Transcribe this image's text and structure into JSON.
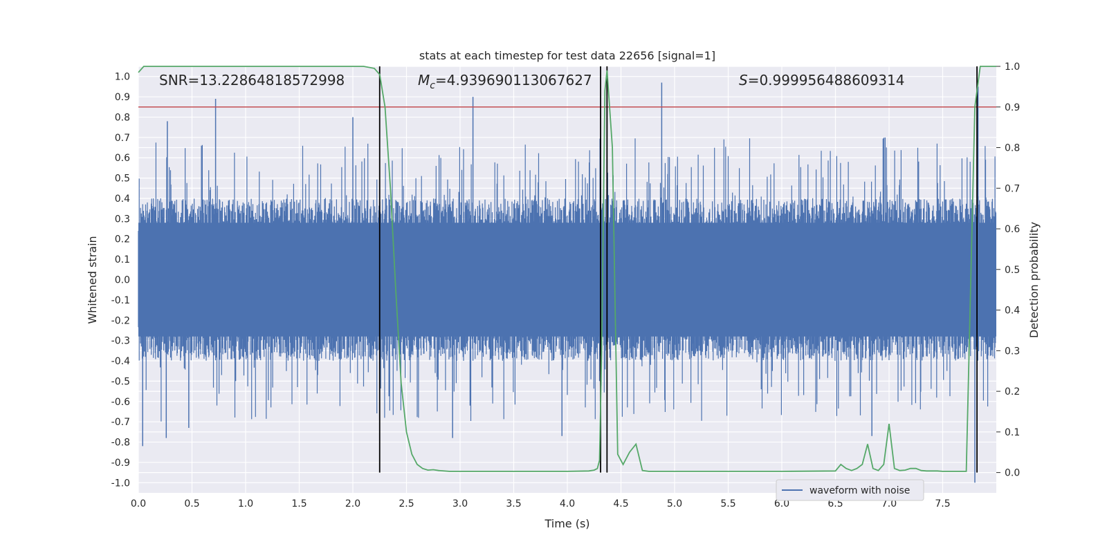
{
  "chart_data": {
    "type": "line",
    "title": "stats at each timestep for test data 22656 [signal=1]",
    "xlabel": "Time (s)",
    "ylabel_left": "Whitened strain",
    "ylabel_right": "Detection probability",
    "xlim": [
      0,
      8
    ],
    "ylim_left": [
      -1.05,
      1.05
    ],
    "ylim_right": [
      -0.05,
      1.0
    ],
    "x_ticks": [
      "0.0",
      "0.5",
      "1.0",
      "1.5",
      "2.0",
      "2.5",
      "3.0",
      "3.5",
      "4.0",
      "4.5",
      "5.0",
      "5.5",
      "6.0",
      "6.5",
      "7.0",
      "7.5"
    ],
    "x_tick_values": [
      0,
      0.5,
      1,
      1.5,
      2,
      2.5,
      3,
      3.5,
      4,
      4.5,
      5,
      5.5,
      6,
      6.5,
      7,
      7.5
    ],
    "y_ticks_left": [
      "1.0",
      "0.9",
      "0.8",
      "0.7",
      "0.6",
      "0.5",
      "0.4",
      "0.3",
      "0.2",
      "0.1",
      "0.0",
      "-0.1",
      "-0.2",
      "-0.3",
      "-0.4",
      "-0.5",
      "-0.6",
      "-0.7",
      "-0.8",
      "-0.9",
      "-1.0"
    ],
    "y_tick_values_left": [
      1,
      0.9,
      0.8,
      0.7,
      0.6,
      0.5,
      0.4,
      0.3,
      0.2,
      0.1,
      0,
      -0.1,
      -0.2,
      -0.3,
      -0.4,
      -0.5,
      -0.6,
      -0.7,
      -0.8,
      -0.9,
      -1
    ],
    "y_ticks_right": [
      "1.0",
      "0.9",
      "0.8",
      "0.7",
      "0.6",
      "0.5",
      "0.4",
      "0.3",
      "0.2",
      "0.1",
      "0.0"
    ],
    "y_tick_values_right": [
      1,
      0.9,
      0.8,
      0.7,
      0.6,
      0.5,
      0.4,
      0.3,
      0.2,
      0.1,
      0
    ],
    "annotations": {
      "snr": "SNR=13.22864818572998",
      "mc_symbol": "M",
      "mc_sub": "c",
      "mc_value": "=4.939690113067627",
      "s_symbol": "S",
      "s_value": "=0.999956488609314"
    },
    "threshold": {
      "value": 0.9,
      "axis": "right",
      "color": "#c44e52"
    },
    "vertical_lines": [
      2.25,
      4.31,
      4.37,
      7.82
    ],
    "waveform": {
      "name": "waveform with noise",
      "color": "#4c72b0",
      "samples": 2000,
      "typical_envelope": [
        -0.4,
        0.4
      ],
      "extremes": [
        {
          "x": 0.72,
          "y": 0.89
        },
        {
          "x": 2.0,
          "y": 0.8
        },
        {
          "x": 3.12,
          "y": 0.9
        },
        {
          "x": 4.88,
          "y": 0.97
        },
        {
          "x": 7.83,
          "y": 0.95
        },
        {
          "x": 0.27,
          "y": 0.78
        },
        {
          "x": 0.04,
          "y": -0.82
        },
        {
          "x": 0.26,
          "y": -0.78
        },
        {
          "x": 2.93,
          "y": -0.78
        },
        {
          "x": 3.95,
          "y": -0.77
        },
        {
          "x": 6.84,
          "y": -0.77
        },
        {
          "x": 7.8,
          "y": -1.0
        },
        {
          "x": 0.47,
          "y": -0.73
        },
        {
          "x": 4.37,
          "y": -0.71
        }
      ]
    },
    "probability": {
      "color": "#55a868",
      "x": [
        0.0,
        0.05,
        0.1,
        0.5,
        1.0,
        1.5,
        2.0,
        2.1,
        2.2,
        2.25,
        2.3,
        2.35,
        2.4,
        2.45,
        2.5,
        2.55,
        2.6,
        2.65,
        2.7,
        2.75,
        2.8,
        2.9,
        3.0,
        3.5,
        4.0,
        4.2,
        4.25,
        4.28,
        4.3,
        4.32,
        4.35,
        4.37,
        4.42,
        4.47,
        4.52,
        4.58,
        4.64,
        4.7,
        4.76,
        4.8,
        4.9,
        5.0,
        5.5,
        6.0,
        6.5,
        6.55,
        6.6,
        6.65,
        6.7,
        6.75,
        6.8,
        6.85,
        6.9,
        6.95,
        7.0,
        7.05,
        7.1,
        7.15,
        7.2,
        7.25,
        7.3,
        7.35,
        7.4,
        7.45,
        7.5,
        7.6,
        7.72,
        7.8,
        7.85,
        7.9,
        7.95,
        8.0
      ],
      "y": [
        0.985,
        1.0,
        1.0,
        1.0,
        1.0,
        1.0,
        1.0,
        1.0,
        0.995,
        0.98,
        0.9,
        0.7,
        0.45,
        0.22,
        0.1,
        0.045,
        0.02,
        0.01,
        0.006,
        0.007,
        0.005,
        0.003,
        0.003,
        0.003,
        0.003,
        0.004,
        0.006,
        0.01,
        0.03,
        0.3,
        0.94,
        0.99,
        0.8,
        0.045,
        0.02,
        0.05,
        0.07,
        0.005,
        0.003,
        0.003,
        0.003,
        0.003,
        0.003,
        0.003,
        0.004,
        0.02,
        0.01,
        0.005,
        0.01,
        0.02,
        0.07,
        0.01,
        0.005,
        0.02,
        0.12,
        0.01,
        0.005,
        0.006,
        0.01,
        0.01,
        0.005,
        0.004,
        0.004,
        0.004,
        0.003,
        0.003,
        0.003,
        0.9,
        1.0,
        1.0,
        1.0,
        1.0
      ]
    },
    "legend": {
      "placement": "lower-right",
      "label": "waveform with noise"
    },
    "grid": true,
    "background": "#eaeaf2"
  }
}
